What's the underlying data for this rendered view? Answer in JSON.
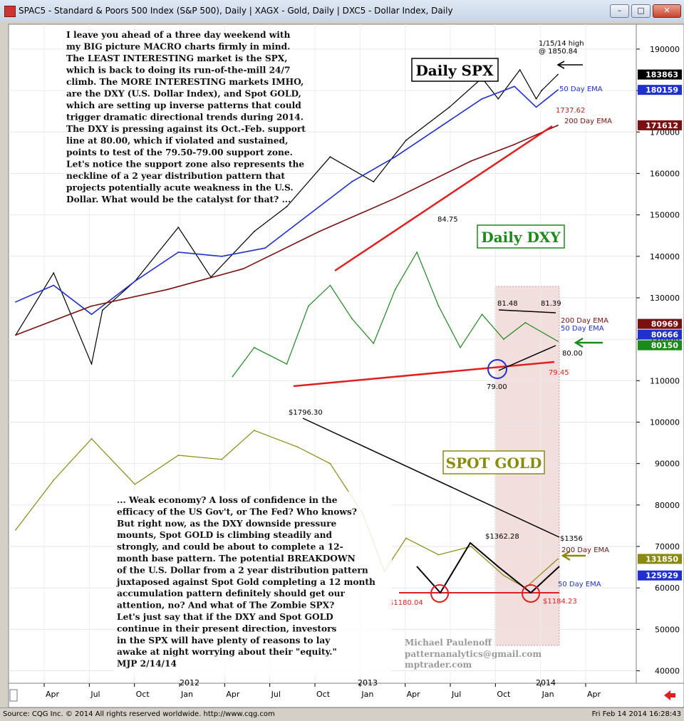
{
  "window": {
    "title": "SPAC5 - Standard & Poors 500 Index (S&P 500), Daily   |   XAGX - Gold, Daily   |   DXC5 - Dollar Index, Daily",
    "minimize": "–",
    "maximize": "□",
    "close": "✕"
  },
  "footer": {
    "source": "Source: CQG Inc. © 2014 All rights reserved worldwide. http://www.cqg.com",
    "timestamp": "Fri Feb 14 2014 16:28:43"
  },
  "colors": {
    "spx": "#000000",
    "dxy": "#1a8a1a",
    "gold": "#8a8a10",
    "ema50": "#1f2fd0",
    "ema200": "#7a1010",
    "support": "#e02020",
    "highlight": "#f5e0e0"
  },
  "chart_data": {
    "type": "line",
    "x_axis": {
      "labels": [
        "Apr",
        "Jul",
        "Oct",
        "Jan",
        "Apr",
        "Jul",
        "Oct",
        "Jan",
        "Apr",
        "Jul",
        "Oct",
        "Jan",
        "Apr"
      ],
      "years": [
        "2012",
        "2013",
        "2014"
      ]
    },
    "y_axis": {
      "ticks": [
        "190000",
        "180000",
        "170000",
        "160000",
        "150000",
        "140000",
        "130000",
        "120000",
        "110000",
        "100000",
        "90000",
        "80000",
        "70000",
        "60000",
        "50000",
        "40000"
      ],
      "range": [
        37000,
        196000
      ]
    },
    "price_tags": [
      {
        "label": "183863",
        "value": 183863,
        "bg": "#000000",
        "fg": "#ffffff"
      },
      {
        "label": "180159",
        "value": 180159,
        "bg": "#1f2fd0",
        "fg": "#ffffff"
      },
      {
        "label": "171612",
        "value": 171612,
        "bg": "#7a1010",
        "fg": "#ffffff"
      },
      {
        "label": "80969",
        "value": 123700,
        "bg": "#7a1010",
        "fg": "#ffffff"
      },
      {
        "label": "80666",
        "value": 122100,
        "bg": "#1f2fd0",
        "fg": "#ffffff"
      },
      {
        "label": "80150",
        "value": 119500,
        "bg": "#1a8a1a",
        "fg": "#ffffff"
      },
      {
        "label": "131850",
        "value": 67000,
        "bg": "#8a8a10",
        "fg": "#ffffff"
      },
      {
        "label": "125929",
        "value": 63000,
        "bg": "#1f2fd0",
        "fg": "#ffffff"
      }
    ],
    "series": [
      {
        "name": "Daily SPX",
        "color": "#000000",
        "x": [
          0,
          0.07,
          0.14,
          0.16,
          0.22,
          0.3,
          0.36,
          0.44,
          0.5,
          0.58,
          0.66,
          0.72,
          0.8,
          0.86,
          0.89,
          0.93,
          0.96,
          0.97,
          1.0
        ],
        "values": [
          121000,
          136000,
          114000,
          127000,
          134000,
          147000,
          135000,
          146000,
          152000,
          164000,
          158000,
          168000,
          176000,
          183000,
          178000,
          185000,
          178000,
          180000,
          183863
        ]
      },
      {
        "name": "Daily DXY",
        "color": "#1a8a1a",
        "x": [
          0.4,
          0.44,
          0.5,
          0.54,
          0.58,
          0.62,
          0.66,
          0.7,
          0.74,
          0.78,
          0.82,
          0.86,
          0.9,
          0.94,
          1.0
        ],
        "values": [
          111000,
          118000,
          114000,
          128000,
          133000,
          125000,
          119000,
          132000,
          141000,
          128000,
          118000,
          126000,
          120000,
          124000,
          119500
        ]
      },
      {
        "name": "SPOT GOLD",
        "color": "#8a8a10",
        "x": [
          0,
          0.07,
          0.14,
          0.22,
          0.3,
          0.38,
          0.44,
          0.52,
          0.58,
          0.64,
          0.68,
          0.72,
          0.78,
          0.84,
          0.9,
          0.94,
          1.0
        ],
        "values": [
          74000,
          86000,
          96000,
          85000,
          92000,
          91000,
          98000,
          94000,
          90000,
          78000,
          64000,
          72000,
          68000,
          70000,
          63000,
          60000,
          67000
        ]
      },
      {
        "name": "50 Day EMA",
        "color": "#1f2fd0",
        "x": [
          0,
          0.07,
          0.14,
          0.22,
          0.3,
          0.38,
          0.46,
          0.54,
          0.62,
          0.7,
          0.78,
          0.86,
          0.92,
          0.96,
          1.0
        ],
        "values": [
          129000,
          133000,
          126000,
          134000,
          141000,
          140000,
          142000,
          150000,
          158000,
          164000,
          171000,
          178000,
          181000,
          176000,
          180159
        ]
      },
      {
        "name": "200 Day EMA",
        "color": "#7a1010",
        "x": [
          0,
          0.14,
          0.28,
          0.42,
          0.56,
          0.7,
          0.84,
          0.92,
          1.0
        ],
        "values": [
          121000,
          128000,
          132000,
          137000,
          146000,
          154000,
          163000,
          167000,
          171612
        ]
      }
    ],
    "annotations": [
      {
        "text": "Daily SPX"
      },
      {
        "text": "Daily DXY"
      },
      {
        "text": "SPOT GOLD"
      },
      {
        "text": "1/15/14 high"
      },
      {
        "text": "@ 1850.84"
      },
      {
        "text": "50 Day EMA"
      },
      {
        "text": "1737.62"
      },
      {
        "text": "200 Day EMA"
      },
      {
        "text": "84.75"
      },
      {
        "text": "81.48"
      },
      {
        "text": "81.39"
      },
      {
        "text": "200 Day EMA"
      },
      {
        "text": "50 Day EMA"
      },
      {
        "text": "80.00"
      },
      {
        "text": "79.45"
      },
      {
        "text": "79.00"
      },
      {
        "text": "$1796.30"
      },
      {
        "text": "$1362.28"
      },
      {
        "text": "$1356"
      },
      {
        "text": "200 Day EMA"
      },
      {
        "text": "50 Day EMA"
      },
      {
        "text": "$1180.04"
      },
      {
        "text": "$1184.23"
      }
    ],
    "commentary_top": [
      "I leave you ahead of a three day weekend with",
      "my BIG picture MACRO charts firmly in mind.",
      "The LEAST INTERESTING market is the SPX,",
      "which is back to doing its run-of-the-mill 24/7",
      "climb. The MORE INTERESTING markets IMHO,",
      "are the DXY (U.S. Dollar Index), and Spot GOLD,",
      "which are setting up inverse patterns that could",
      "trigger dramatic directional trends during 2014.",
      "The DXY is pressing against its Oct.-Feb. support",
      "line at 80.00, which if violated and sustained,",
      "points to test of the 79.50-79.00 support zone.",
      "Let's notice the support zone also represents the",
      "neckline of a 2 year distribution pattern that",
      "projects potentially acute weakness in the U.S.",
      "Dollar. What would be the catalyst for that? ..."
    ],
    "commentary_bottom": [
      "... Weak economy?  A loss of confidence in the",
      "efficacy of the US Gov't, or The Fed? Who knows?",
      "But right now, as the DXY downside pressure",
      "mounts, Spot GOLD is climbing steadily and",
      "strongly, and could be about to complete a 12-",
      "month base pattern. The potential BREAKDOWN",
      "of the U.S. Dollar from a 2 year distribution pattern",
      "juxtaposed against Spot Gold completing a 12 month",
      "accumulation pattern definitely should get our",
      "attention, no?  And what of The Zombie SPX?",
      "Let's just say that if the DXY and Spot GOLD",
      "continue in their present direction, investors",
      "in the SPX will have plenty of reasons to lay",
      "awake at night worrying about their \"equity.\"",
      "MJP  2/14/14"
    ],
    "credits": [
      "Michael Paulenoff",
      "patternanalytics@gmail.com",
      "mptrader.com"
    ],
    "grid": true,
    "legend": "none"
  }
}
